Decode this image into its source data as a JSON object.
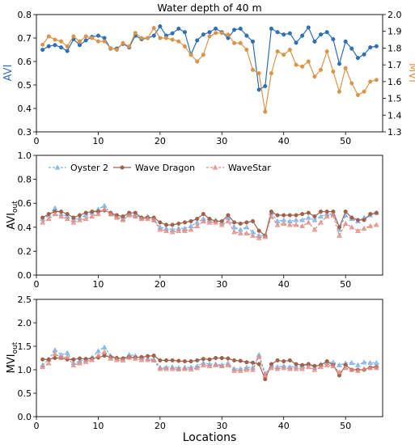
{
  "chart_data": [
    {
      "type": "line",
      "title": "Water depth of 40 m",
      "xlabel": "",
      "ylabel": "AVI",
      "y2label": "MVI",
      "xlim": [
        0,
        56
      ],
      "ylim": [
        0.3,
        0.8
      ],
      "y2lim": [
        1.3,
        2.0
      ],
      "xticks": [
        0,
        10,
        20,
        30,
        40,
        50
      ],
      "yticks": [
        0.3,
        0.4,
        0.5,
        0.6,
        0.7,
        0.8
      ],
      "y2ticks": [
        1.3,
        1.4,
        1.5,
        1.6,
        1.7,
        1.8,
        1.9,
        2.0
      ],
      "colors": {
        "AVI": "#2f6fb5",
        "MVI": "#d9964a"
      },
      "grid": false,
      "series": [
        {
          "axis": "left",
          "x": [
            1,
            2,
            3,
            4,
            5,
            6,
            7,
            8,
            9,
            10,
            11,
            12,
            13,
            14,
            15,
            16,
            17,
            18,
            19,
            20,
            21,
            22,
            23,
            24,
            25,
            26,
            27,
            28,
            29,
            30,
            31,
            32,
            33,
            34,
            35,
            36,
            37,
            38,
            39,
            40,
            41,
            42,
            43,
            44,
            45,
            46,
            47,
            48,
            49,
            50,
            51,
            52,
            53,
            54,
            55
          ],
          "values": [
            0.65,
            0.665,
            0.67,
            0.66,
            0.645,
            0.695,
            0.67,
            0.69,
            0.705,
            0.71,
            0.7,
            0.655,
            0.655,
            0.675,
            0.66,
            0.71,
            0.695,
            0.7,
            0.71,
            0.75,
            0.71,
            0.72,
            0.74,
            0.725,
            0.63,
            0.69,
            0.715,
            0.725,
            0.74,
            0.725,
            0.7,
            0.735,
            0.74,
            0.71,
            0.685,
            0.48,
            0.495,
            0.74,
            0.725,
            0.715,
            0.72,
            0.68,
            0.71,
            0.745,
            0.685,
            0.715,
            0.725,
            0.695,
            0.59,
            0.685,
            0.655,
            0.615,
            0.63,
            0.66,
            0.665
          ]
        },
        {
          "axis": "right",
          "x": [
            1,
            2,
            3,
            4,
            5,
            6,
            7,
            8,
            9,
            10,
            11,
            12,
            13,
            14,
            15,
            16,
            17,
            18,
            19,
            20,
            21,
            22,
            23,
            24,
            25,
            26,
            27,
            28,
            29,
            30,
            31,
            32,
            33,
            34,
            35,
            36,
            37,
            38,
            39,
            40,
            41,
            42,
            43,
            44,
            45,
            46,
            47,
            48,
            49,
            50,
            51,
            52,
            53,
            54,
            55
          ],
          "values": [
            1.82,
            1.87,
            1.85,
            1.84,
            1.81,
            1.87,
            1.84,
            1.87,
            1.86,
            1.84,
            1.84,
            1.8,
            1.79,
            1.83,
            1.81,
            1.89,
            1.86,
            1.86,
            1.92,
            1.86,
            1.86,
            1.85,
            1.84,
            1.81,
            1.76,
            1.72,
            1.76,
            1.87,
            1.89,
            1.89,
            1.88,
            1.83,
            1.83,
            1.79,
            1.67,
            1.65,
            1.42,
            1.65,
            1.78,
            1.76,
            1.79,
            1.7,
            1.69,
            1.72,
            1.63,
            1.67,
            1.78,
            1.66,
            1.54,
            1.68,
            1.59,
            1.52,
            1.54,
            1.6,
            1.61
          ]
        }
      ]
    },
    {
      "type": "line",
      "title": "",
      "xlabel": "",
      "ylabel": "AVI",
      "ylabel_sub": "out",
      "xlim": [
        0,
        56
      ],
      "ylim": [
        0.0,
        1.0
      ],
      "xticks": [
        0,
        10,
        20,
        30,
        40,
        50
      ],
      "yticks": [
        0.0,
        0.2,
        0.4,
        0.6,
        0.8,
        1.0
      ],
      "legend": "upper",
      "grid": false,
      "series": [
        {
          "name": "Oyster 2",
          "color": "#7aaee6",
          "marker": "triangle",
          "x": [
            1,
            2,
            3,
            4,
            5,
            6,
            7,
            8,
            9,
            10,
            11,
            12,
            13,
            14,
            15,
            16,
            17,
            18,
            19,
            20,
            21,
            22,
            23,
            24,
            25,
            26,
            27,
            28,
            29,
            30,
            31,
            32,
            33,
            34,
            35,
            36,
            37,
            38,
            39,
            40,
            41,
            42,
            43,
            44,
            45,
            46,
            47,
            48,
            49,
            50,
            51,
            52,
            53,
            54,
            55
          ],
          "values": [
            0.47,
            0.5,
            0.56,
            0.51,
            0.49,
            0.46,
            0.48,
            0.5,
            0.52,
            0.55,
            0.58,
            0.51,
            0.49,
            0.47,
            0.51,
            0.5,
            0.48,
            0.49,
            0.46,
            0.4,
            0.39,
            0.38,
            0.39,
            0.39,
            0.41,
            0.44,
            0.47,
            0.46,
            0.46,
            0.44,
            0.48,
            0.4,
            0.38,
            0.4,
            0.36,
            0.33,
            0.33,
            0.52,
            0.45,
            0.46,
            0.45,
            0.46,
            0.46,
            0.48,
            0.46,
            0.49,
            0.51,
            0.51,
            0.38,
            0.5,
            0.47,
            0.45,
            0.48,
            0.5,
            0.52
          ]
        },
        {
          "name": "Wave Dragon",
          "color": "#a0604a",
          "marker": "circle",
          "x": [
            1,
            2,
            3,
            4,
            5,
            6,
            7,
            8,
            9,
            10,
            11,
            12,
            13,
            14,
            15,
            16,
            17,
            18,
            19,
            20,
            21,
            22,
            23,
            24,
            25,
            26,
            27,
            28,
            29,
            30,
            31,
            32,
            33,
            34,
            35,
            36,
            37,
            38,
            39,
            40,
            41,
            42,
            43,
            44,
            45,
            46,
            47,
            48,
            49,
            50,
            51,
            52,
            53,
            54,
            55
          ],
          "values": [
            0.48,
            0.51,
            0.53,
            0.53,
            0.51,
            0.48,
            0.5,
            0.52,
            0.53,
            0.53,
            0.54,
            0.52,
            0.5,
            0.49,
            0.52,
            0.52,
            0.48,
            0.48,
            0.48,
            0.44,
            0.42,
            0.42,
            0.43,
            0.44,
            0.45,
            0.47,
            0.51,
            0.47,
            0.45,
            0.45,
            0.5,
            0.44,
            0.43,
            0.44,
            0.45,
            0.37,
            0.33,
            0.53,
            0.5,
            0.5,
            0.5,
            0.5,
            0.51,
            0.52,
            0.49,
            0.53,
            0.53,
            0.53,
            0.4,
            0.53,
            0.48,
            0.46,
            0.46,
            0.51,
            0.52
          ]
        },
        {
          "name": "WaveStar",
          "color": "#e08a80",
          "marker": "triangle",
          "x": [
            1,
            2,
            3,
            4,
            5,
            6,
            7,
            8,
            9,
            10,
            11,
            12,
            13,
            14,
            15,
            16,
            17,
            18,
            19,
            20,
            21,
            22,
            23,
            24,
            25,
            26,
            27,
            28,
            29,
            30,
            31,
            32,
            33,
            34,
            35,
            36,
            37,
            38,
            39,
            40,
            41,
            42,
            43,
            44,
            45,
            46,
            47,
            48,
            49,
            50,
            51,
            52,
            53,
            54,
            55
          ],
          "values": [
            0.44,
            0.47,
            0.51,
            0.49,
            0.47,
            0.44,
            0.46,
            0.47,
            0.49,
            0.51,
            0.55,
            0.51,
            0.48,
            0.46,
            0.5,
            0.49,
            0.47,
            0.47,
            0.46,
            0.38,
            0.37,
            0.36,
            0.37,
            0.37,
            0.38,
            0.41,
            0.45,
            0.44,
            0.44,
            0.42,
            0.45,
            0.36,
            0.35,
            0.35,
            0.33,
            0.31,
            0.32,
            0.49,
            0.42,
            0.43,
            0.42,
            0.42,
            0.41,
            0.44,
            0.38,
            0.44,
            0.49,
            0.5,
            0.33,
            0.43,
            0.4,
            0.37,
            0.39,
            0.41,
            0.42
          ]
        }
      ]
    },
    {
      "type": "line",
      "title": "",
      "xlabel": "Locations",
      "ylabel": "MVI",
      "ylabel_sub": "out",
      "xlim": [
        0,
        56
      ],
      "ylim": [
        0.0,
        2.5
      ],
      "xticks": [
        0,
        10,
        20,
        30,
        40,
        50
      ],
      "yticks": [
        0.0,
        0.5,
        1.0,
        1.5,
        2.0,
        2.5
      ],
      "grid": false,
      "series": [
        {
          "name": "Oyster 2",
          "color": "#7aaee6",
          "marker": "triangle",
          "x": [
            1,
            2,
            3,
            4,
            5,
            6,
            7,
            8,
            9,
            10,
            11,
            12,
            13,
            14,
            15,
            16,
            17,
            18,
            19,
            20,
            21,
            22,
            23,
            24,
            25,
            26,
            27,
            28,
            29,
            30,
            31,
            32,
            33,
            34,
            35,
            36,
            37,
            38,
            39,
            40,
            41,
            42,
            43,
            44,
            45,
            46,
            47,
            48,
            49,
            50,
            51,
            52,
            53,
            54,
            55
          ],
          "values": [
            1.1,
            1.22,
            1.42,
            1.32,
            1.36,
            1.15,
            1.18,
            1.22,
            1.26,
            1.4,
            1.48,
            1.3,
            1.25,
            1.24,
            1.32,
            1.3,
            1.26,
            1.24,
            1.22,
            1.05,
            1.05,
            1.06,
            1.04,
            1.05,
            1.05,
            1.08,
            1.15,
            1.12,
            1.12,
            1.1,
            1.14,
            1.02,
            1.02,
            1.05,
            1.05,
            1.32,
            0.92,
            1.08,
            1.06,
            1.08,
            1.06,
            1.07,
            1.08,
            1.12,
            1.05,
            1.12,
            1.15,
            1.16,
            1.1,
            1.14,
            1.15,
            1.1,
            1.16,
            1.15,
            1.15
          ]
        },
        {
          "name": "Wave Dragon",
          "color": "#a0604a",
          "marker": "circle",
          "x": [
            1,
            2,
            3,
            4,
            5,
            6,
            7,
            8,
            9,
            10,
            11,
            12,
            13,
            14,
            15,
            16,
            17,
            18,
            19,
            20,
            21,
            22,
            23,
            24,
            25,
            26,
            27,
            28,
            29,
            30,
            31,
            32,
            33,
            34,
            35,
            36,
            37,
            38,
            39,
            40,
            41,
            42,
            43,
            44,
            45,
            46,
            47,
            48,
            49,
            50,
            51,
            52,
            53,
            54,
            55
          ],
          "values": [
            1.22,
            1.22,
            1.25,
            1.25,
            1.22,
            1.22,
            1.24,
            1.23,
            1.24,
            1.26,
            1.3,
            1.27,
            1.25,
            1.24,
            1.27,
            1.26,
            1.27,
            1.29,
            1.3,
            1.2,
            1.2,
            1.2,
            1.19,
            1.18,
            1.18,
            1.2,
            1.23,
            1.22,
            1.25,
            1.25,
            1.24,
            1.2,
            1.19,
            1.16,
            1.15,
            1.12,
            0.8,
            1.12,
            1.2,
            1.18,
            1.2,
            1.12,
            1.1,
            1.12,
            1.08,
            1.1,
            1.18,
            1.1,
            0.88,
            1.1,
            1.0,
            1.0,
            1.0,
            1.05,
            1.06
          ]
        },
        {
          "name": "WaveStar",
          "color": "#e08a80",
          "marker": "triangle",
          "x": [
            1,
            2,
            3,
            4,
            5,
            6,
            7,
            8,
            9,
            10,
            11,
            12,
            13,
            14,
            15,
            16,
            17,
            18,
            19,
            20,
            21,
            22,
            23,
            24,
            25,
            26,
            27,
            28,
            29,
            30,
            31,
            32,
            33,
            34,
            35,
            36,
            37,
            38,
            39,
            40,
            41,
            42,
            43,
            44,
            45,
            46,
            47,
            48,
            49,
            50,
            51,
            52,
            53,
            54,
            55
          ],
          "values": [
            1.06,
            1.14,
            1.34,
            1.26,
            1.27,
            1.1,
            1.14,
            1.17,
            1.21,
            1.3,
            1.38,
            1.24,
            1.21,
            1.2,
            1.26,
            1.24,
            1.21,
            1.21,
            1.2,
            1.02,
            1.02,
            1.02,
            1.01,
            1.02,
            1.01,
            1.04,
            1.1,
            1.08,
            1.1,
            1.08,
            1.1,
            0.98,
            0.98,
            1.0,
            1.0,
            1.28,
            0.88,
            1.04,
            1.02,
            1.04,
            1.02,
            1.02,
            1.02,
            1.06,
            1.0,
            1.06,
            1.1,
            1.08,
            0.95,
            1.04,
            1.0,
            0.98,
            1.02,
            1.04,
            1.04
          ]
        }
      ]
    }
  ]
}
